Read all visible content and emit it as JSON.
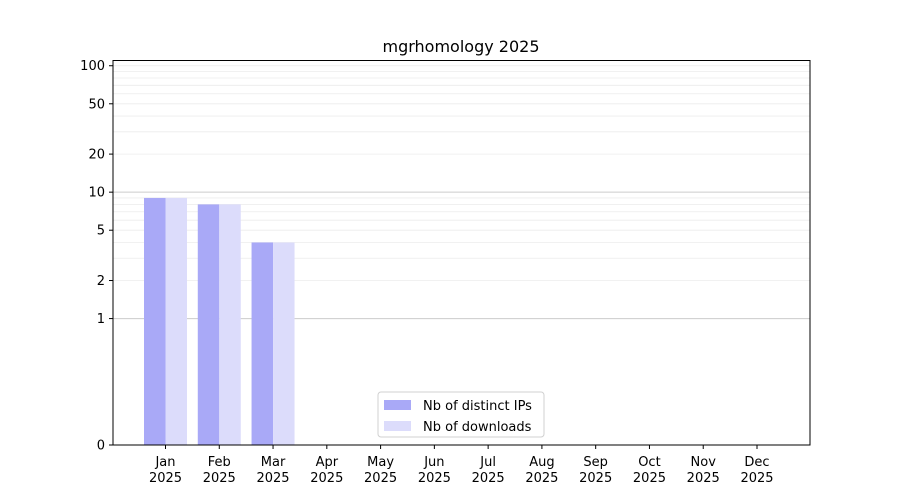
{
  "chart_data": {
    "type": "bar",
    "title": "mgrhomology 2025",
    "xlabel": "",
    "ylabel": "",
    "y_scale": "symlog",
    "ylim": [
      0,
      110
    ],
    "y_ticks": [
      0,
      1,
      2,
      5,
      10,
      20,
      50,
      100
    ],
    "grid": "y",
    "legend_position": "lower-center",
    "categories": [
      [
        "Jan",
        "2025"
      ],
      [
        "Feb",
        "2025"
      ],
      [
        "Mar",
        "2025"
      ],
      [
        "Apr",
        "2025"
      ],
      [
        "May",
        "2025"
      ],
      [
        "Jun",
        "2025"
      ],
      [
        "Jul",
        "2025"
      ],
      [
        "Aug",
        "2025"
      ],
      [
        "Sep",
        "2025"
      ],
      [
        "Oct",
        "2025"
      ],
      [
        "Nov",
        "2025"
      ],
      [
        "Dec",
        "2025"
      ]
    ],
    "series": [
      {
        "name": "Nb of distinct IPs",
        "color": "#a9a9f7",
        "values": [
          9,
          8,
          4,
          0,
          0,
          0,
          0,
          0,
          0,
          0,
          0,
          0
        ]
      },
      {
        "name": "Nb of downloads",
        "color": "#dcdcfb",
        "values": [
          9,
          8,
          4,
          0,
          0,
          0,
          0,
          0,
          0,
          0,
          0,
          0
        ]
      }
    ]
  }
}
